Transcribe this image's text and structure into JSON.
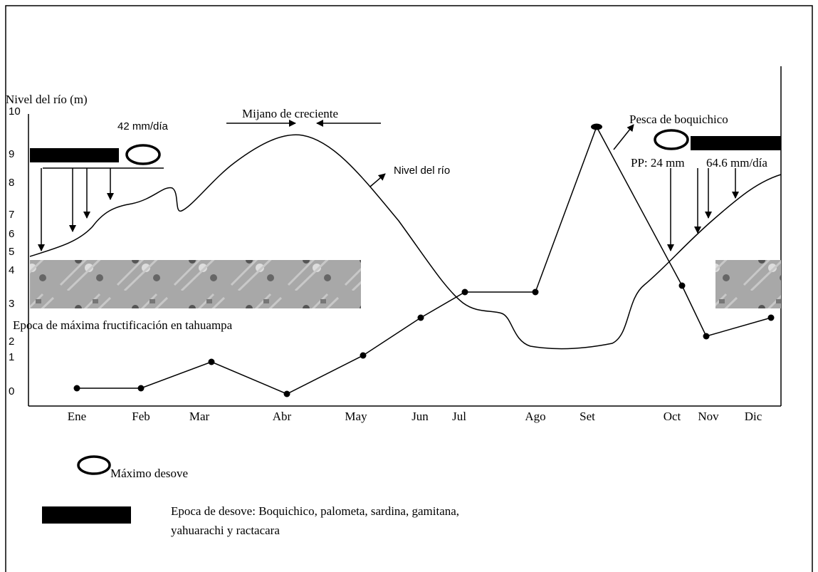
{
  "axis_title": "Nivel del río (m)",
  "y_labels": [
    "10",
    "9",
    "8",
    "7",
    "6",
    "5",
    "4",
    "3",
    "2",
    "1",
    "0"
  ],
  "months": [
    "Ene",
    "Feb",
    "Mar",
    "Abr",
    "May",
    "Jun",
    "Jul",
    "Ago",
    "Set",
    "Oct",
    "Nov",
    "Dic"
  ],
  "annotations": {
    "rain_left": "42 mm/día",
    "mijano": "Mijano de creciente",
    "river_level": "Nivel del río",
    "fishing": "Pesca de boquichico",
    "pp": "PP: 24 mm",
    "rain_right": "64.6 mm/día",
    "fruiting": "Epoca de máxima fructificación en tahuampa"
  },
  "legend": {
    "max_spawn": "Máximo desove",
    "spawn_season": [
      "Epoca de desove: Boquichico, palometa, sardina,  gamitana,",
      "yahuarachi y ractacara"
    ]
  }
}
